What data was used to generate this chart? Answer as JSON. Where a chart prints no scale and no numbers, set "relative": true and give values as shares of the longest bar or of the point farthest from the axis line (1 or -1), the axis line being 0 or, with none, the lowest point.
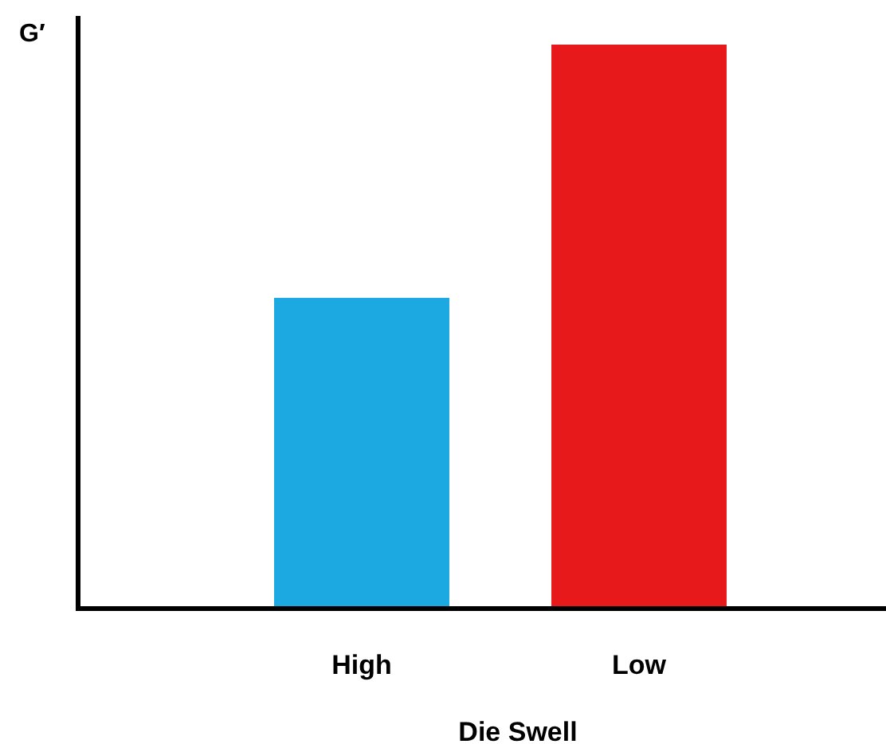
{
  "chart_data": {
    "type": "bar",
    "relative": true,
    "xlabel": "Die Swell",
    "ylabel": "G′",
    "categories": [
      "High",
      "Low"
    ],
    "values": [
      0.551,
      1
    ],
    "colors": [
      "#1ca9e1",
      "#e8191a"
    ]
  }
}
